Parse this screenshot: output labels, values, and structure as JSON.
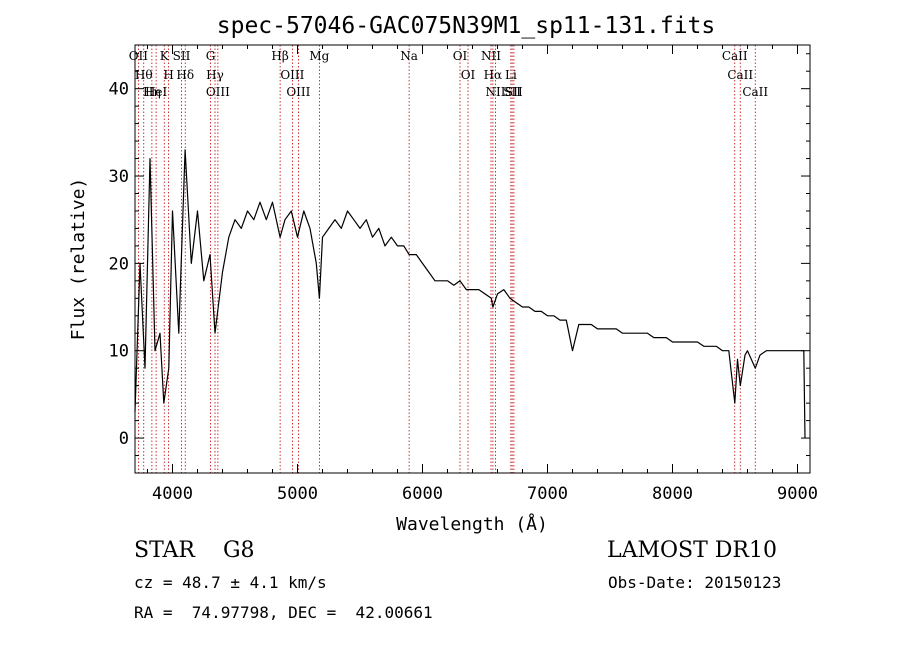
{
  "chart_data": {
    "type": "line",
    "title": "spec-57046-GAC075N39M1_sp11-131.fits",
    "xlabel": "Wavelength (Å)",
    "ylabel": "Flux (relative)",
    "xlim": [
      3700,
      9100
    ],
    "ylim": [
      -4,
      45
    ],
    "xticks": [
      4000,
      5000,
      6000,
      7000,
      8000,
      9000
    ],
    "xtick_labels": [
      "4000",
      "5000",
      "6000",
      "7000",
      "8000",
      "9000"
    ],
    "yticks": [
      0,
      10,
      20,
      30,
      40
    ],
    "ytick_labels": [
      "0",
      "10",
      "20",
      "30",
      "40"
    ],
    "grid": false,
    "series": [
      {
        "x": [
          3700,
          3740,
          3780,
          3820,
          3860,
          3900,
          3930,
          3970,
          4000,
          4050,
          4101,
          4150,
          4200,
          4250,
          4300,
          4340,
          4400,
          4450,
          4500,
          4550,
          4600,
          4650,
          4700,
          4750,
          4800,
          4861,
          4900,
          4950,
          5000,
          5050,
          5100,
          5150,
          5175,
          5200,
          5250,
          5300,
          5350,
          5400,
          5450,
          5500,
          5550,
          5600,
          5650,
          5700,
          5750,
          5800,
          5850,
          5893,
          5950,
          6000,
          6050,
          6100,
          6150,
          6200,
          6250,
          6300,
          6350,
          6400,
          6450,
          6500,
          6550,
          6563,
          6600,
          6650,
          6700,
          6750,
          6800,
          6850,
          6900,
          6950,
          7000,
          7050,
          7100,
          7150,
          7200,
          7250,
          7300,
          7350,
          7400,
          7450,
          7500,
          7550,
          7600,
          7650,
          7700,
          7750,
          7800,
          7850,
          7900,
          7950,
          8000,
          8050,
          8100,
          8150,
          8200,
          8250,
          8300,
          8350,
          8400,
          8450,
          8498,
          8520,
          8542,
          8580,
          8600,
          8662,
          8700,
          8750,
          8800,
          8850,
          8900,
          8950,
          9000,
          9050,
          9060
        ],
        "y": [
          3,
          20,
          8,
          32,
          10,
          12,
          4,
          8,
          26,
          12,
          33,
          20,
          26,
          18,
          21,
          12,
          19,
          23,
          25,
          24,
          26,
          25,
          27,
          25,
          27,
          23,
          25,
          26,
          23,
          26,
          24,
          20,
          16,
          23,
          24,
          25,
          24,
          26,
          25,
          24,
          25,
          23,
          24,
          22,
          23,
          22,
          22,
          21,
          21,
          20,
          19,
          18,
          18,
          18,
          17.5,
          18,
          17,
          17,
          17,
          16.5,
          16,
          15,
          16.5,
          17,
          16,
          15.5,
          15,
          15,
          14.5,
          14.5,
          14,
          14,
          13.5,
          13.5,
          10,
          13,
          13,
          13,
          12.5,
          12.5,
          12.5,
          12.5,
          12,
          12,
          12,
          12,
          12,
          11.5,
          11.5,
          11.5,
          11,
          11,
          11,
          11,
          11,
          10.5,
          10.5,
          10.5,
          10,
          10,
          4,
          9,
          6,
          9.5,
          10,
          8,
          9.5,
          10,
          10,
          10,
          10,
          10,
          10,
          10,
          0
        ]
      }
    ],
    "lines": [
      {
        "x": 3727,
        "label": "OII"
      },
      {
        "x": 3770,
        "label": "Hθ"
      },
      {
        "x": 3835,
        "label": "Hη"
      },
      {
        "x": 3869,
        "label": "HeI"
      },
      {
        "x": 3934,
        "label": "K"
      },
      {
        "x": 3969,
        "label": "H"
      },
      {
        "x": 4072,
        "label": "SII"
      },
      {
        "x": 4102,
        "label": "Hδ"
      },
      {
        "x": 4304,
        "label": "G"
      },
      {
        "x": 4340,
        "label": "Hγ"
      },
      {
        "x": 4363,
        "label": "OIII"
      },
      {
        "x": 4861,
        "label": "Hβ"
      },
      {
        "x": 4959,
        "label": "OIII"
      },
      {
        "x": 5007,
        "label": "OIII"
      },
      {
        "x": 5175,
        "label": "Mg"
      },
      {
        "x": 5893,
        "label": "Na"
      },
      {
        "x": 6300,
        "label": "OI"
      },
      {
        "x": 6364,
        "label": "OI"
      },
      {
        "x": 6548,
        "label": "NII"
      },
      {
        "x": 6563,
        "label": "Hα"
      },
      {
        "x": 6584,
        "label": "NII"
      },
      {
        "x": 6707,
        "label": "Li"
      },
      {
        "x": 6717,
        "label": "SII"
      },
      {
        "x": 6731,
        "label": "SII"
      },
      {
        "x": 8498,
        "label": "CaII"
      },
      {
        "x": 8542,
        "label": "CaII"
      },
      {
        "x": 8662,
        "label": "CaII"
      }
    ]
  },
  "info": {
    "class": "STAR    G8",
    "survey": "LAMOST DR10",
    "cz": "cz = 48.7 ± 4.1 km/s",
    "obs_date": "Obs-Date: 20150123",
    "coords": "RA =  74.97798, DEC =  42.00661"
  }
}
